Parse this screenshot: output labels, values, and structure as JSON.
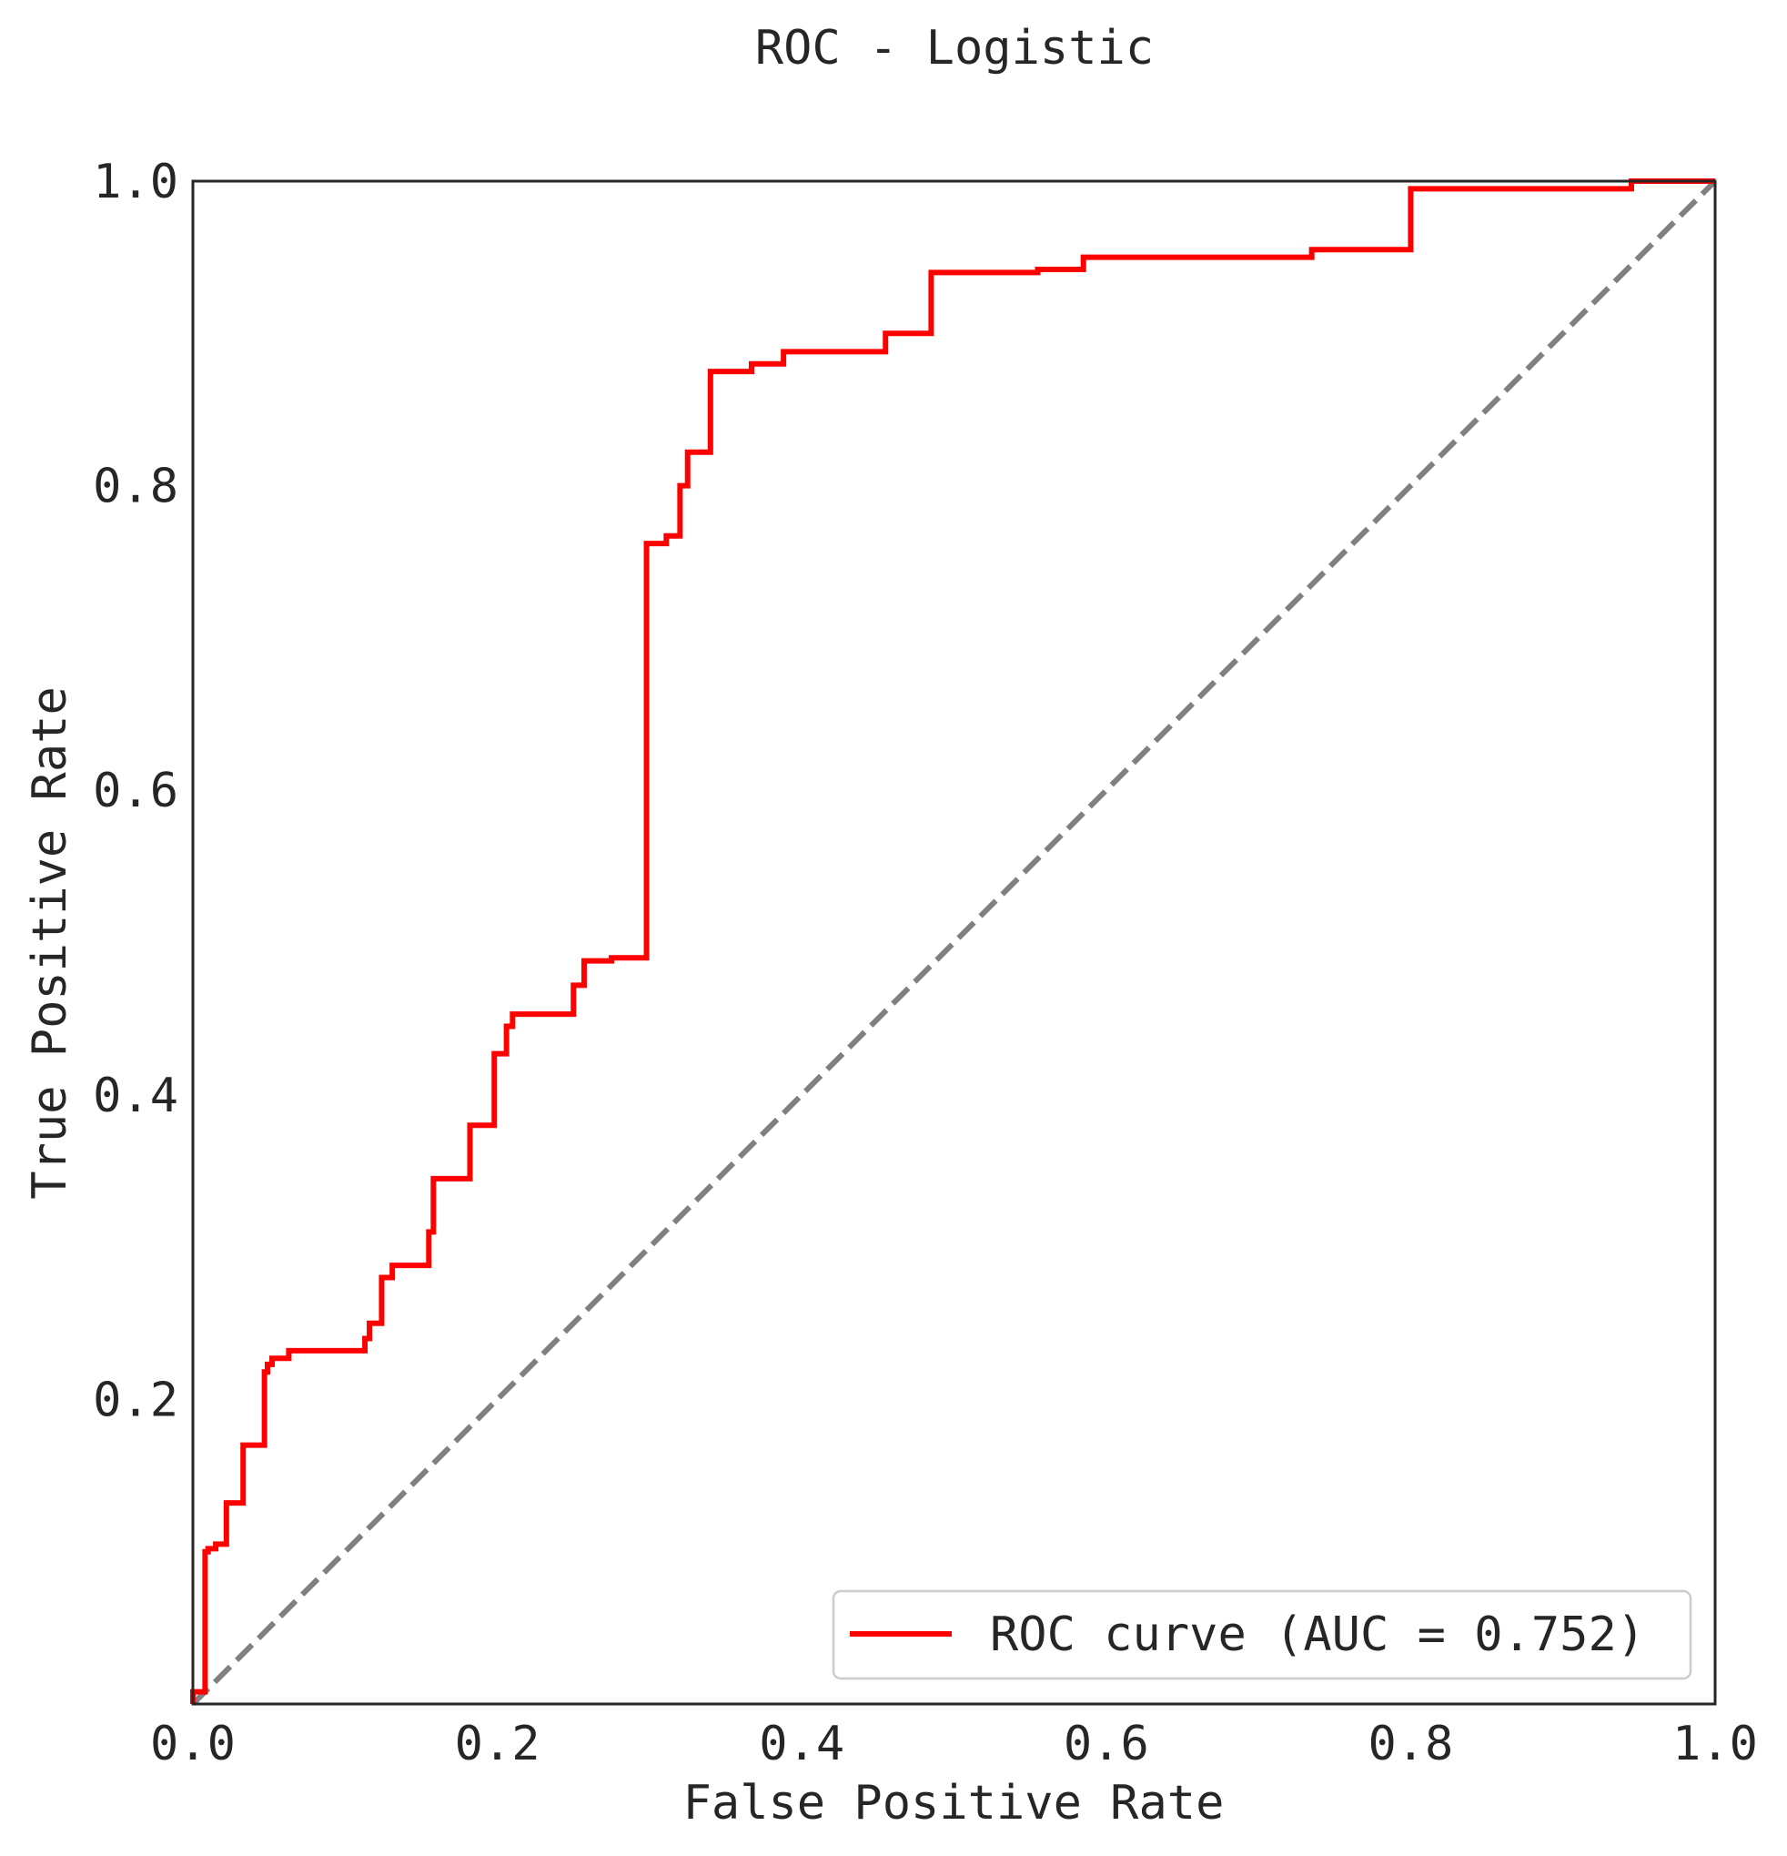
{
  "chart_data": {
    "type": "line",
    "title": "ROC - Logistic",
    "xlabel": "False Positive Rate",
    "ylabel": "True Positive Rate",
    "xlim": [
      0.0,
      1.0
    ],
    "ylim": [
      0.0,
      1.0
    ],
    "xticks": [
      "0.0",
      "0.2",
      "0.4",
      "0.6",
      "0.8",
      "1.0"
    ],
    "yticks": [
      "0.2",
      "0.4",
      "0.6",
      "0.8",
      "1.0"
    ],
    "grid": false,
    "legend": {
      "position": "lower-right",
      "entries": [
        "ROC curve (AUC = 0.752)"
      ]
    },
    "series": [
      {
        "name": "ROC curve (AUC = 0.752)",
        "color": "#ff0000",
        "style": "solid",
        "x": [
          0.0,
          0.0,
          0.008,
          0.008,
          0.01,
          0.01,
          0.015,
          0.015,
          0.022,
          0.022,
          0.033,
          0.033,
          0.047,
          0.047,
          0.049,
          0.049,
          0.052,
          0.052,
          0.063,
          0.063,
          0.113,
          0.113,
          0.116,
          0.116,
          0.124,
          0.124,
          0.131,
          0.131,
          0.155,
          0.155,
          0.158,
          0.158,
          0.182,
          0.182,
          0.198,
          0.198,
          0.206,
          0.206,
          0.21,
          0.21,
          0.25,
          0.25,
          0.257,
          0.257,
          0.275,
          0.275,
          0.298,
          0.298,
          0.311,
          0.311,
          0.32,
          0.32,
          0.325,
          0.325,
          0.34,
          0.34,
          0.367,
          0.367,
          0.388,
          0.388,
          0.455,
          0.455,
          0.485,
          0.485,
          0.555,
          0.555,
          0.585,
          0.585,
          0.735,
          0.735,
          0.8,
          0.8,
          0.945,
          0.945,
          1.0
        ],
        "y": [
          0.0,
          0.008,
          0.008,
          0.1,
          0.1,
          0.102,
          0.102,
          0.105,
          0.105,
          0.132,
          0.132,
          0.17,
          0.17,
          0.218,
          0.218,
          0.223,
          0.223,
          0.227,
          0.227,
          0.232,
          0.232,
          0.24,
          0.24,
          0.25,
          0.25,
          0.28,
          0.28,
          0.288,
          0.288,
          0.31,
          0.31,
          0.345,
          0.345,
          0.38,
          0.38,
          0.427,
          0.427,
          0.445,
          0.445,
          0.453,
          0.453,
          0.472,
          0.472,
          0.488,
          0.488,
          0.49,
          0.49,
          0.762,
          0.762,
          0.767,
          0.767,
          0.8,
          0.8,
          0.822,
          0.822,
          0.875,
          0.875,
          0.88,
          0.88,
          0.888,
          0.888,
          0.9,
          0.9,
          0.94,
          0.94,
          0.942,
          0.942,
          0.95,
          0.95,
          0.955,
          0.955,
          0.995,
          0.995,
          1.0,
          1.0
        ]
      },
      {
        "color": "#808080",
        "style": "dashed",
        "x": [
          0.0,
          1.0
        ],
        "y": [
          0.0,
          1.0
        ]
      }
    ]
  }
}
